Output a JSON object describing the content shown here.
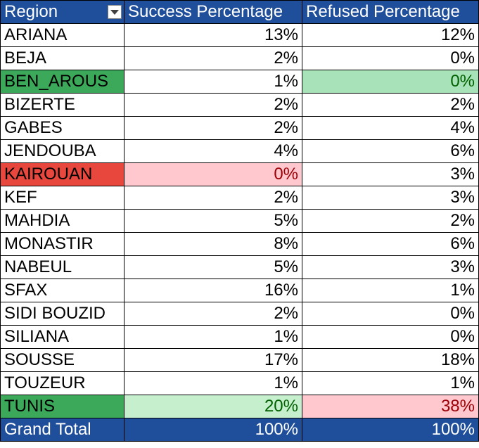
{
  "header": {
    "region": "Region",
    "success": "Success Percentage",
    "refused": "Refused Percentage",
    "filter_icon": "dropdown-filter-icon"
  },
  "rows": [
    {
      "region": "ARIANA",
      "success": "13%",
      "refused": "12%"
    },
    {
      "region": "BEJA",
      "success": "2%",
      "refused": "0%"
    },
    {
      "region": "BEN_AROUS",
      "success": "1%",
      "refused": "0%"
    },
    {
      "region": "BIZERTE",
      "success": "2%",
      "refused": "2%"
    },
    {
      "region": "GABES",
      "success": "2%",
      "refused": "4%"
    },
    {
      "region": "JENDOUBA",
      "success": "4%",
      "refused": "6%"
    },
    {
      "region": "KAIROUAN",
      "success": "0%",
      "refused": "3%"
    },
    {
      "region": "KEF",
      "success": "2%",
      "refused": "3%"
    },
    {
      "region": "MAHDIA",
      "success": "5%",
      "refused": "2%"
    },
    {
      "region": "MONASTIR",
      "success": "8%",
      "refused": "6%"
    },
    {
      "region": "NABEUL",
      "success": "5%",
      "refused": "3%"
    },
    {
      "region": "SFAX",
      "success": "16%",
      "refused": "1%"
    },
    {
      "region": "SIDI BOUZID",
      "success": "2%",
      "refused": "0%"
    },
    {
      "region": "SILIANA",
      "success": "1%",
      "refused": "0%"
    },
    {
      "region": "SOUSSE",
      "success": "17%",
      "refused": "18%"
    },
    {
      "region": "TOUZEUR",
      "success": "1%",
      "refused": "1%"
    },
    {
      "region": "TUNIS",
      "success": "20%",
      "refused": "38%"
    }
  ],
  "total": {
    "region": "Grand Total",
    "success": "100%",
    "refused": "100%"
  },
  "colors": {
    "header_bg": "#1F4E9A",
    "green_dark": "#3BA85A",
    "green_light": "#A8E2B8",
    "red_dark": "#E8473E",
    "red_light": "#FFC7CE"
  }
}
